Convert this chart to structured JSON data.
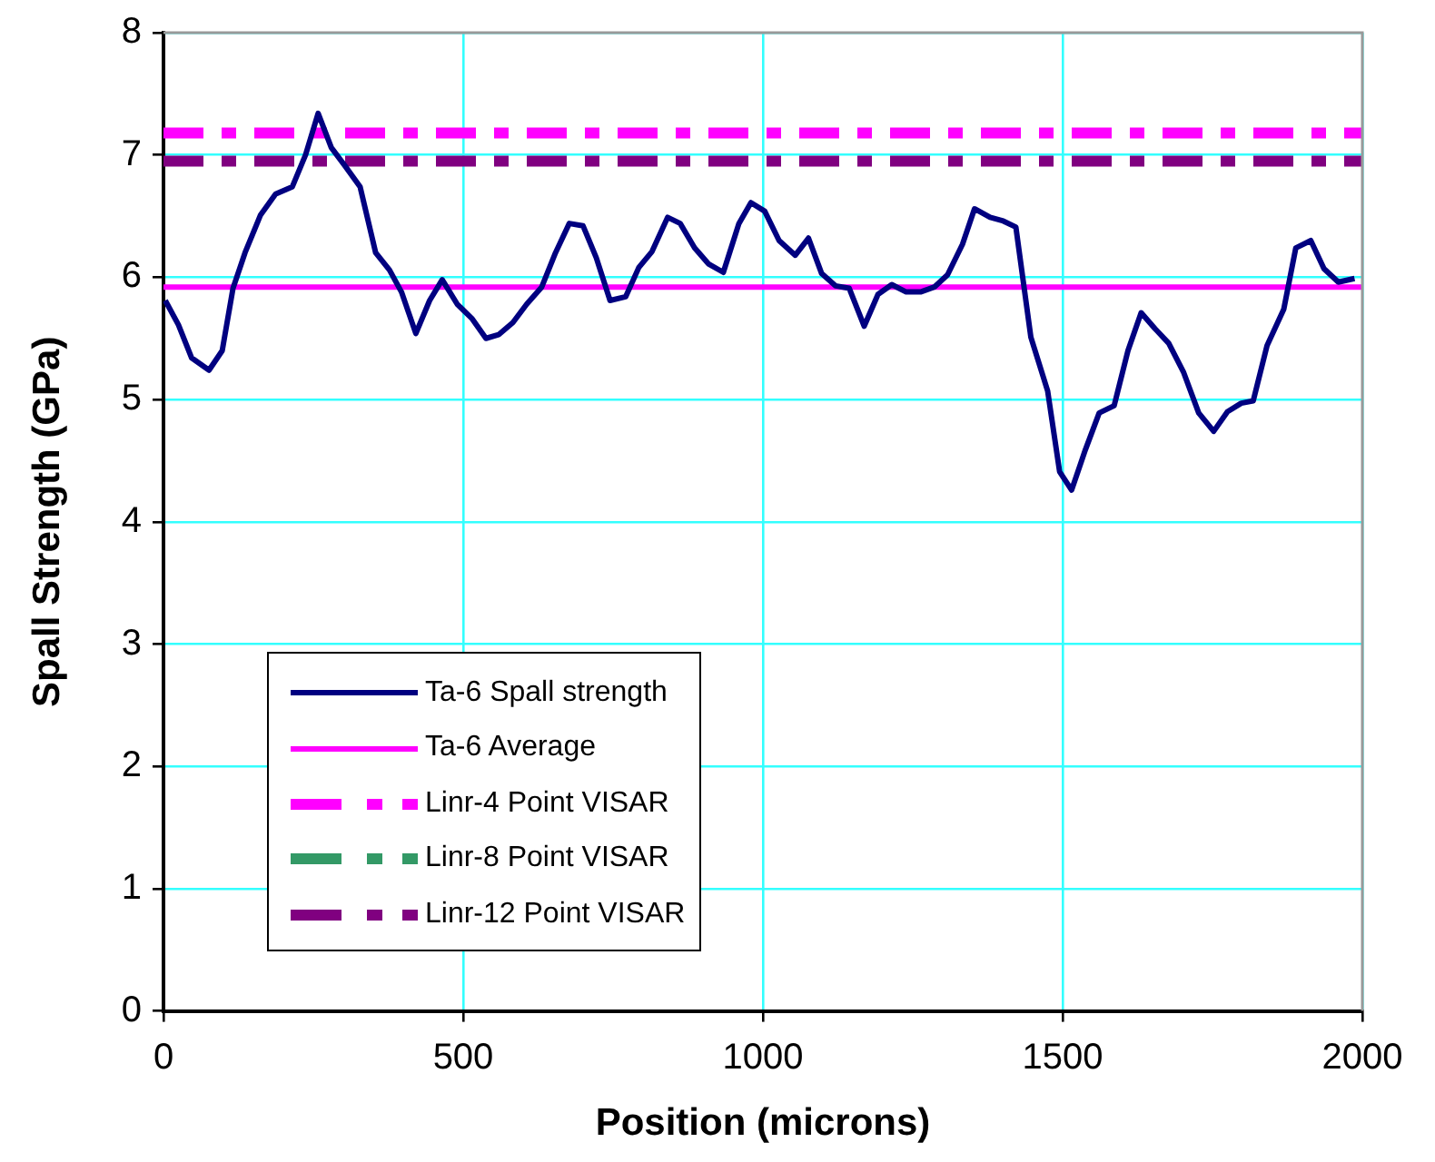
{
  "chart_data": {
    "type": "line",
    "xlabel": "Position (microns)",
    "ylabel": "Spall Strength (GPa)",
    "xlim": [
      0,
      2000
    ],
    "xticks": [
      0,
      500,
      1000,
      1500,
      2000
    ],
    "ylim": [
      0,
      8
    ],
    "yticks": [
      0,
      1,
      2,
      3,
      4,
      5,
      6,
      7,
      8
    ],
    "grid": true,
    "legend": "bottom left",
    "marker": "none",
    "series": [
      {
        "name": "Ta-6 Spall strength",
        "color": "#000080",
        "line_style": "solid",
        "x": [
          3,
          25,
          47,
          76,
          98,
          116,
          136,
          162,
          187,
          215,
          237,
          258,
          280,
          303,
          328,
          354,
          377,
          397,
          421,
          444,
          465,
          490,
          515,
          538,
          559,
          583,
          606,
          631,
          654,
          677,
          700,
          722,
          745,
          771,
          793,
          815,
          841,
          862,
          886,
          909,
          934,
          960,
          980,
          1003,
          1027,
          1054,
          1076,
          1098,
          1121,
          1144,
          1169,
          1192,
          1215,
          1239,
          1263,
          1286,
          1308,
          1333,
          1353,
          1379,
          1401,
          1422,
          1447,
          1475,
          1495,
          1515,
          1538,
          1561,
          1586,
          1609,
          1631,
          1654,
          1677,
          1702,
          1727,
          1752,
          1775,
          1798,
          1818,
          1841,
          1869,
          1889,
          1914,
          1936,
          1960,
          1987
        ],
        "values": [
          5.81,
          5.61,
          5.34,
          5.24,
          5.4,
          5.91,
          6.2,
          6.51,
          6.68,
          6.74,
          7.0,
          7.34,
          7.06,
          6.91,
          6.74,
          6.2,
          6.06,
          5.88,
          5.54,
          5.81,
          5.98,
          5.78,
          5.66,
          5.5,
          5.53,
          5.63,
          5.78,
          5.92,
          6.2,
          6.44,
          6.42,
          6.16,
          5.81,
          5.84,
          6.08,
          6.21,
          6.49,
          6.44,
          6.24,
          6.11,
          6.04,
          6.44,
          6.61,
          6.54,
          6.3,
          6.18,
          6.32,
          6.03,
          5.93,
          5.91,
          5.6,
          5.86,
          5.94,
          5.88,
          5.88,
          5.92,
          6.02,
          6.27,
          6.56,
          6.49,
          6.46,
          6.41,
          5.51,
          5.07,
          4.41,
          4.26,
          4.59,
          4.89,
          4.95,
          5.4,
          5.71,
          5.58,
          5.46,
          5.22,
          4.89,
          4.74,
          4.9,
          4.97,
          4.99,
          5.44,
          5.74,
          6.24,
          6.3,
          6.07,
          5.96,
          5.99
        ]
      },
      {
        "name": "Ta-6 Average",
        "color": "#ff00ff",
        "line_style": "solid",
        "x": [
          0,
          2000
        ],
        "values": [
          5.92,
          5.92
        ]
      },
      {
        "name": "Linr-4 Point VISAR",
        "color": "#ff00ff",
        "line_style": "dashed",
        "x": [
          0,
          2000
        ],
        "values": [
          7.18,
          7.18
        ]
      },
      {
        "name": "Linr-8 Point VISAR",
        "color": "#339966",
        "line_style": "dashed"
      },
      {
        "name": "Linr-12 Point VISAR",
        "color": "#800080",
        "line_style": "dashed",
        "x": [
          0,
          2000
        ],
        "values": [
          6.95,
          6.95
        ]
      }
    ]
  }
}
